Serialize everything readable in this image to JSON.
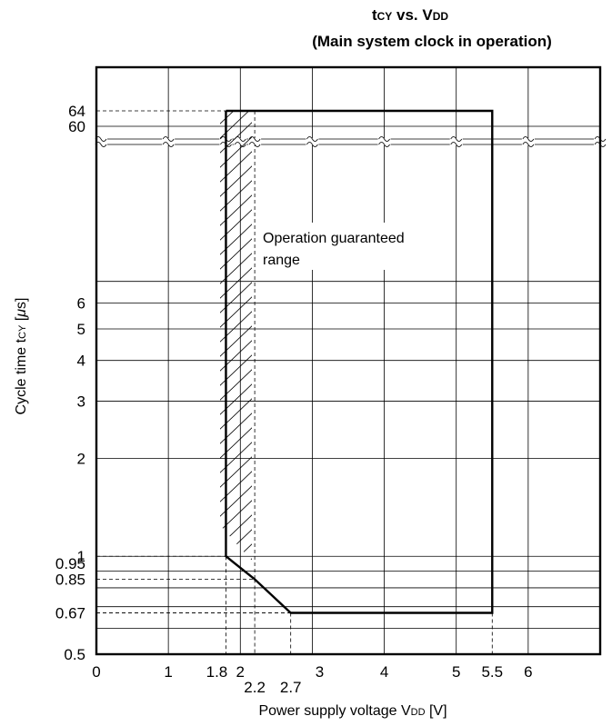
{
  "chart_data": {
    "type": "line",
    "title": "tCY vs. VDD",
    "subtitle": "(Main system clock in operation)",
    "title_parts": [
      {
        "text": "t",
        "sub": false
      },
      {
        "text": "CY",
        "sub": true
      },
      {
        "text": " vs. V",
        "sub": false
      },
      {
        "text": "DD",
        "sub": true
      }
    ],
    "xlabel_parts": [
      {
        "text": "Power supply voltage V",
        "sub": false
      },
      {
        "text": "DD",
        "sub": true
      },
      {
        "text": " [V]",
        "sub": false
      }
    ],
    "ylabel_parts": [
      {
        "text": "Cycle time t",
        "sub": false
      },
      {
        "text": "CY",
        "sub": true
      },
      {
        "text": " [",
        "sub": false
      },
      {
        "text": "μ",
        "sub": false,
        "italic": true
      },
      {
        "text": "s]",
        "sub": false
      }
    ],
    "x_ticks": [
      "0",
      "1",
      "1.8",
      "2",
      "2.2",
      "2.7",
      "3",
      "4",
      "5",
      "5.5",
      "6"
    ],
    "y_ticks_lower": [
      "0.5",
      "0.67",
      "0.85",
      "0.95",
      "1",
      "2",
      "3",
      "4",
      "5",
      "6"
    ],
    "y_ticks_upper": [
      "60",
      "64"
    ],
    "x_range": [
      0,
      7
    ],
    "y_lower_range": [
      0.5,
      7
    ],
    "y_scale": "log with axis break above 7, upper segment 60 to 64",
    "region_label": [
      "Operation guaranteed",
      "range"
    ],
    "boundary": [
      {
        "x": 1.8,
        "y": 64
      },
      {
        "x": 5.5,
        "y": 64
      },
      {
        "x": 5.5,
        "y": 0.67
      },
      {
        "x": 2.7,
        "y": 0.67
      },
      {
        "x": 2.2,
        "y": 0.85
      },
      {
        "x": 1.8,
        "y": 1
      },
      {
        "x": 1.8,
        "y": 64
      }
    ],
    "hatched_band": {
      "x_from": 1.8,
      "x_to": 2.2,
      "y_from": 1,
      "y_to": 64
    },
    "reference_lines": [
      {
        "x": 1.8,
        "y": 1
      },
      {
        "x": 2.2,
        "y": 0.85
      },
      {
        "x": 2.7,
        "y": 0.67
      },
      {
        "x": 5.5,
        "y": 0.67
      },
      {
        "x": 1.8,
        "y": 64
      }
    ],
    "grid": true,
    "legend": "none"
  }
}
